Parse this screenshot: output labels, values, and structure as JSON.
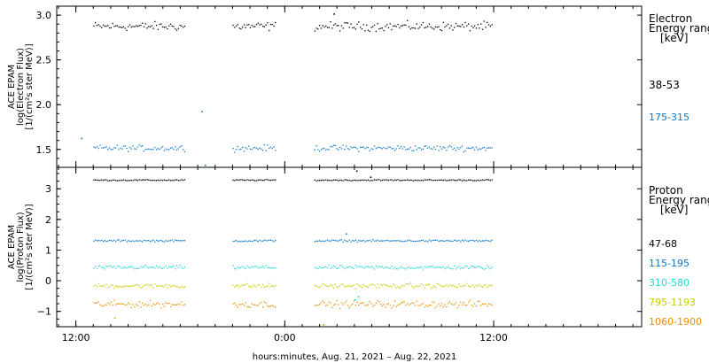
{
  "chart_data": [
    {
      "type": "scatter",
      "panel": "top",
      "ylabel_lines": [
        "ACE EPAM",
        "log(Electron Flux)",
        "[1/(cm²s ster MeV)]"
      ],
      "ylim": [
        1.3,
        3.1
      ],
      "yticks": [
        {
          "value": 3.0,
          "label": "3.0"
        },
        {
          "value": 2.5,
          "label": "2.5"
        },
        {
          "value": 2.0,
          "label": "2.0"
        },
        {
          "value": 1.5,
          "label": "1.5"
        }
      ],
      "legend_title_lines": [
        "Electron",
        "Energy ranges",
        "[keV]"
      ],
      "series": [
        {
          "name": "38–53",
          "color": "#000000",
          "mean": 2.88,
          "spread": 0.045,
          "legend": "38-53"
        },
        {
          "name": "175–315",
          "color": "#0a78c8",
          "mean": 1.52,
          "spread": 0.03,
          "legend": "175-315"
        }
      ],
      "outliers": [
        {
          "hour": 19.2,
          "value": 1.93,
          "series": 1
        },
        {
          "hour": 19.4,
          "value": 1.33,
          "series": 1
        },
        {
          "hour": 26.8,
          "value": 3.02,
          "series": 0
        },
        {
          "hour": 12.3,
          "value": 1.63,
          "series": 1
        }
      ]
    },
    {
      "type": "scatter",
      "panel": "bottom",
      "ylabel_lines": [
        "ACE EPAM",
        "log(Proton Flux)",
        "[1/(cm²s ster MeV)]"
      ],
      "ylim": [
        -1.5,
        3.7
      ],
      "yticks": [
        {
          "value": 3,
          "label": "3"
        },
        {
          "value": 2,
          "label": "2"
        },
        {
          "value": 1,
          "label": "1"
        },
        {
          "value": 0,
          "label": "0"
        },
        {
          "value": -1,
          "label": "−1"
        }
      ],
      "legend_title_lines": [
        "Proton",
        "Energy ranges",
        "[keV]"
      ],
      "series": [
        {
          "name": "47–68",
          "color": "#000000",
          "mean": 3.3,
          "spread": 0.02,
          "legend": "47-68"
        },
        {
          "name": "115–195",
          "color": "#0a78c8",
          "mean": 1.32,
          "spread": 0.03,
          "legend": "115-195"
        },
        {
          "name": "310–580",
          "color": "#1ed8d8",
          "mean": 0.45,
          "spread": 0.06,
          "legend": "310-580"
        },
        {
          "name": "795–1193",
          "color": "#cccc00",
          "mean": -0.15,
          "spread": 0.07,
          "legend": "795-1193"
        },
        {
          "name": "1060–1900",
          "color": "#f08c00",
          "mean": -0.75,
          "spread": 0.1,
          "legend": "1060-1900"
        }
      ],
      "outliers": [
        {
          "hour": 28.1,
          "value": 3.6,
          "series": 0
        },
        {
          "hour": 28.9,
          "value": 3.4,
          "series": 0
        },
        {
          "hour": 27.5,
          "value": 1.55,
          "series": 1
        },
        {
          "hour": 28.0,
          "value": -0.6,
          "series": 2
        },
        {
          "hour": 28.2,
          "value": -0.5,
          "series": 2
        },
        {
          "hour": 14.2,
          "value": -1.2,
          "series": 4
        },
        {
          "hour": 26.2,
          "value": -1.42,
          "series": 4
        }
      ]
    }
  ],
  "time_axis": {
    "xlim_hours": [
      10.9,
      44.5
    ],
    "ticks": [
      {
        "hour": 12,
        "label": "12:00"
      },
      {
        "hour": 24,
        "label": "0:00"
      },
      {
        "hour": 36,
        "label": "12:00"
      }
    ],
    "minor_tick_step_hours": 1,
    "data_segments": [
      [
        13.0,
        18.3
      ],
      [
        21.0,
        23.5
      ],
      [
        25.7,
        35.9
      ]
    ],
    "xlabel": "hours:minutes, Aug. 21, 2021 – Aug. 22, 2021"
  }
}
